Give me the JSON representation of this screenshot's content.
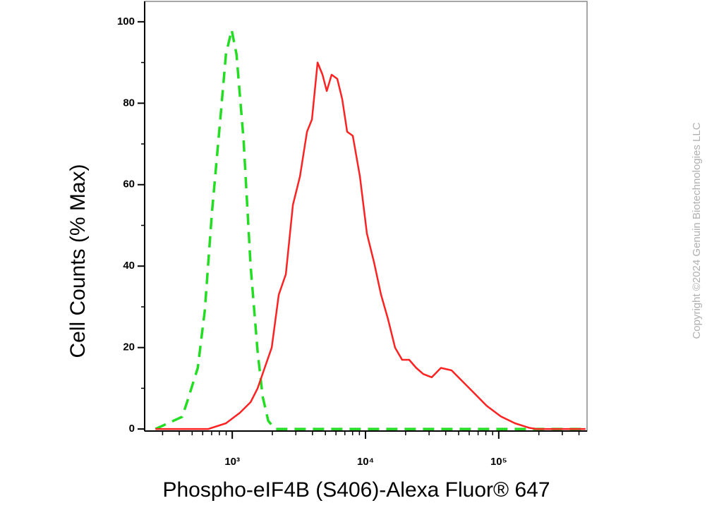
{
  "chart_data": {
    "type": "line",
    "ylabel": "Cell Counts (% Max)",
    "xlabel": "Phospho-eIF4B (S406)-Alexa Fluor® 647",
    "watermark": "Copyright ©2024 Genuin Biotechnologies LLC",
    "xscale": "log",
    "xlim": [
      220,
      460000
    ],
    "ylim": [
      -0.5,
      105
    ],
    "xticks": [
      {
        "value": 1000,
        "label": "10³"
      },
      {
        "value": 10000,
        "label": "10⁴"
      },
      {
        "value": 100000,
        "label": "10⁵"
      }
    ],
    "yticks": [
      0,
      20,
      40,
      60,
      80,
      100
    ],
    "series": [
      {
        "color": "#22dd22",
        "dash": true,
        "x": [
          265,
          421,
          458,
          551,
          622,
          703,
          813,
          896,
          989,
          1076,
          1216,
          1374,
          1550,
          1690,
          1862,
          2103,
          448000
        ],
        "values": [
          0,
          3,
          6.6,
          15,
          29,
          53,
          76,
          92,
          98,
          92,
          71,
          40,
          19,
          8,
          2,
          0,
          0
        ]
      },
      {
        "color": "#ff2222",
        "dash": false,
        "x": [
          265,
          661,
          896,
          1143,
          1374,
          1550,
          1750,
          1977,
          2233,
          2523,
          2851,
          3221,
          3639,
          3963,
          4369,
          4757,
          5117,
          5572,
          6138,
          6686,
          7280,
          8032,
          9075,
          10250,
          11570,
          13070,
          14760,
          16670,
          18830,
          21270,
          24030,
          27150,
          31420,
          36810,
          44250,
          53090,
          63680,
          81280,
          103700,
          132400,
          169000,
          190700,
          448000
        ],
        "values": [
          0,
          0,
          1.4,
          4,
          6.6,
          10,
          15,
          20,
          33,
          38,
          55,
          62,
          73,
          76,
          90,
          87,
          83,
          87,
          86,
          81,
          73,
          72,
          62,
          48,
          41,
          33,
          27,
          20,
          17,
          17,
          15,
          13.5,
          12.7,
          15,
          14.4,
          11.8,
          9.2,
          5.7,
          3.1,
          1.4,
          0.3,
          0,
          0
        ]
      }
    ]
  }
}
